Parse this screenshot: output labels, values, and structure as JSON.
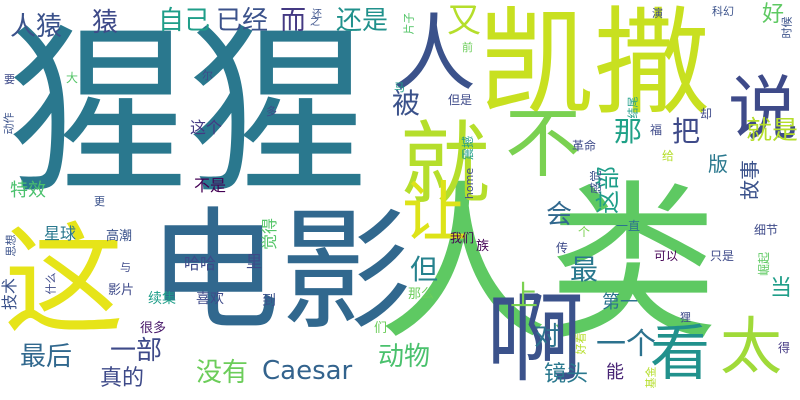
{
  "words": [
    {
      "text": "猩猩",
      "color": "#2a788e"
    },
    {
      "text": "人类",
      "color": "#5ec962"
    },
    {
      "text": "凯撒",
      "color": "#c8e020"
    },
    {
      "text": "电影",
      "color": "#31688e"
    },
    {
      "text": "这",
      "color": "#e6e419"
    },
    {
      "text": "人",
      "color": "#3b528b"
    },
    {
      "text": "就",
      "color": "#b5de2b"
    },
    {
      "text": "不",
      "color": "#7ad151"
    },
    {
      "text": "让",
      "color": "#dde318"
    },
    {
      "text": "说",
      "color": "#3e4a89"
    },
    {
      "text": "啊",
      "color": "#3b528b"
    },
    {
      "text": "看",
      "color": "#21918c"
    },
    {
      "text": "太",
      "color": "#a0da39"
    },
    {
      "text": "猿",
      "color": "#3e4a89"
    },
    {
      "text": "人猿",
      "color": "#3b528b"
    },
    {
      "text": "自己",
      "color": "#1f9e89"
    },
    {
      "text": "已经",
      "color": "#3b528b"
    },
    {
      "text": "而",
      "color": "#443983"
    },
    {
      "text": "还是",
      "color": "#21918c"
    },
    {
      "text": "又",
      "color": "#b5de2b"
    },
    {
      "text": "好",
      "color": "#5ec962"
    },
    {
      "text": "被",
      "color": "#3b528b"
    },
    {
      "text": "那",
      "color": "#1fa187"
    },
    {
      "text": "把",
      "color": "#3e4a89"
    },
    {
      "text": "就是",
      "color": "#b5de2b"
    },
    {
      "text": "会",
      "color": "#31688e"
    },
    {
      "text": "这部",
      "color": "#1f9e89"
    },
    {
      "text": "但",
      "color": "#26828e"
    },
    {
      "text": "最",
      "color": "#2a788e"
    },
    {
      "text": "上",
      "color": "#7ad151"
    },
    {
      "text": "一个",
      "color": "#2c728e"
    },
    {
      "text": "对",
      "color": "#2c728e"
    },
    {
      "text": "动物",
      "color": "#4ac16d"
    },
    {
      "text": "Caesar",
      "color": "#33638d"
    },
    {
      "text": "没有",
      "color": "#6ccd5a"
    },
    {
      "text": "一部",
      "color": "#3e4a89"
    },
    {
      "text": "最后",
      "color": "#31688e"
    },
    {
      "text": "真的",
      "color": "#3e4a89"
    },
    {
      "text": "镜头",
      "color": "#2a788e"
    },
    {
      "text": "第一",
      "color": "#2c728e"
    },
    {
      "text": "能",
      "color": "#482475"
    },
    {
      "text": "当",
      "color": "#1f9e89"
    },
    {
      "text": "故事",
      "color": "#3b528b"
    },
    {
      "text": "版",
      "color": "#2a788e"
    },
    {
      "text": "特效",
      "color": "#4ac16d"
    },
    {
      "text": "这个",
      "color": "#443983"
    },
    {
      "text": "不是",
      "color": "#440154"
    },
    {
      "text": "星球",
      "color": "#2a788e"
    },
    {
      "text": "高潮",
      "color": "#3b528b"
    },
    {
      "text": "哈哈",
      "color": "#3e4a89"
    },
    {
      "text": "觉得",
      "color": "#54c568"
    },
    {
      "text": "里",
      "color": "#3e4a89"
    },
    {
      "text": "技术",
      "color": "#3b528b"
    },
    {
      "text": "影片",
      "color": "#3e4a89"
    },
    {
      "text": "续集",
      "color": "#1f9e89"
    },
    {
      "text": "喜欢",
      "color": "#3e4a89"
    },
    {
      "text": "到",
      "color": "#3b528b"
    },
    {
      "text": "很多",
      "color": "#48186a"
    },
    {
      "text": "们",
      "color": "#6ccd5a"
    },
    {
      "text": "那么",
      "color": "#6ccd5a"
    },
    {
      "text": "我们",
      "color": "#440154"
    },
    {
      "text": "一直",
      "color": "#2c728e"
    },
    {
      "text": "可以",
      "color": "#440154"
    },
    {
      "text": "只是",
      "color": "#3e4a89"
    },
    {
      "text": "好看",
      "color": "#b5de2b"
    },
    {
      "text": "细节",
      "color": "#3e4a89"
    },
    {
      "text": "崛起",
      "color": "#5ec962"
    },
    {
      "text": "得",
      "color": "#443983"
    },
    {
      "text": "感觉",
      "color": "#3b528b"
    },
    {
      "text": "给",
      "color": "#b5de2b"
    },
    {
      "text": "族",
      "color": "#440154"
    },
    {
      "text": "传",
      "color": "#3e4a89"
    },
    {
      "text": "个",
      "color": "#7ad151"
    },
    {
      "text": "革命",
      "color": "#3e4a89"
    },
    {
      "text": "福",
      "color": "#3e4a89"
    },
    {
      "text": "结尾",
      "color": "#1f9e89"
    },
    {
      "text": "却",
      "color": "#3e4a89"
    },
    {
      "text": "时候",
      "color": "#3b528b"
    },
    {
      "text": "科幻",
      "color": "#3b528b"
    },
    {
      "text": "演",
      "color": "#3e4a89"
    },
    {
      "text": "前",
      "color": "#6ccd5a"
    },
    {
      "text": "片子",
      "color": "#54c568"
    },
    {
      "text": "之",
      "color": "#3b528b"
    },
    {
      "text": "还",
      "color": "#3b528b"
    },
    {
      "text": "尔",
      "color": "#3e4a89"
    },
    {
      "text": "多",
      "color": "#3e4a89"
    },
    {
      "text": "大",
      "color": "#54c568"
    },
    {
      "text": "要",
      "color": "#3e4a89"
    },
    {
      "text": "动作",
      "color": "#3b528b"
    },
    {
      "text": "马",
      "color": "#1f9e89"
    },
    {
      "text": "但是",
      "color": "#3e4a89"
    },
    {
      "text": "home",
      "color": "#3e4a89"
    },
    {
      "text": "震撼",
      "color": "#1f9e89"
    },
    {
      "text": "更",
      "color": "#3b528b"
    },
    {
      "text": "与",
      "color": "#3e4a89"
    },
    {
      "text": "什么",
      "color": "#3e4a89"
    },
    {
      "text": "思想",
      "color": "#3b528b"
    },
    {
      "text": "狸",
      "color": "#3e4a89"
    },
    {
      "text": "基金",
      "color": "#b5de2b"
    }
  ]
}
